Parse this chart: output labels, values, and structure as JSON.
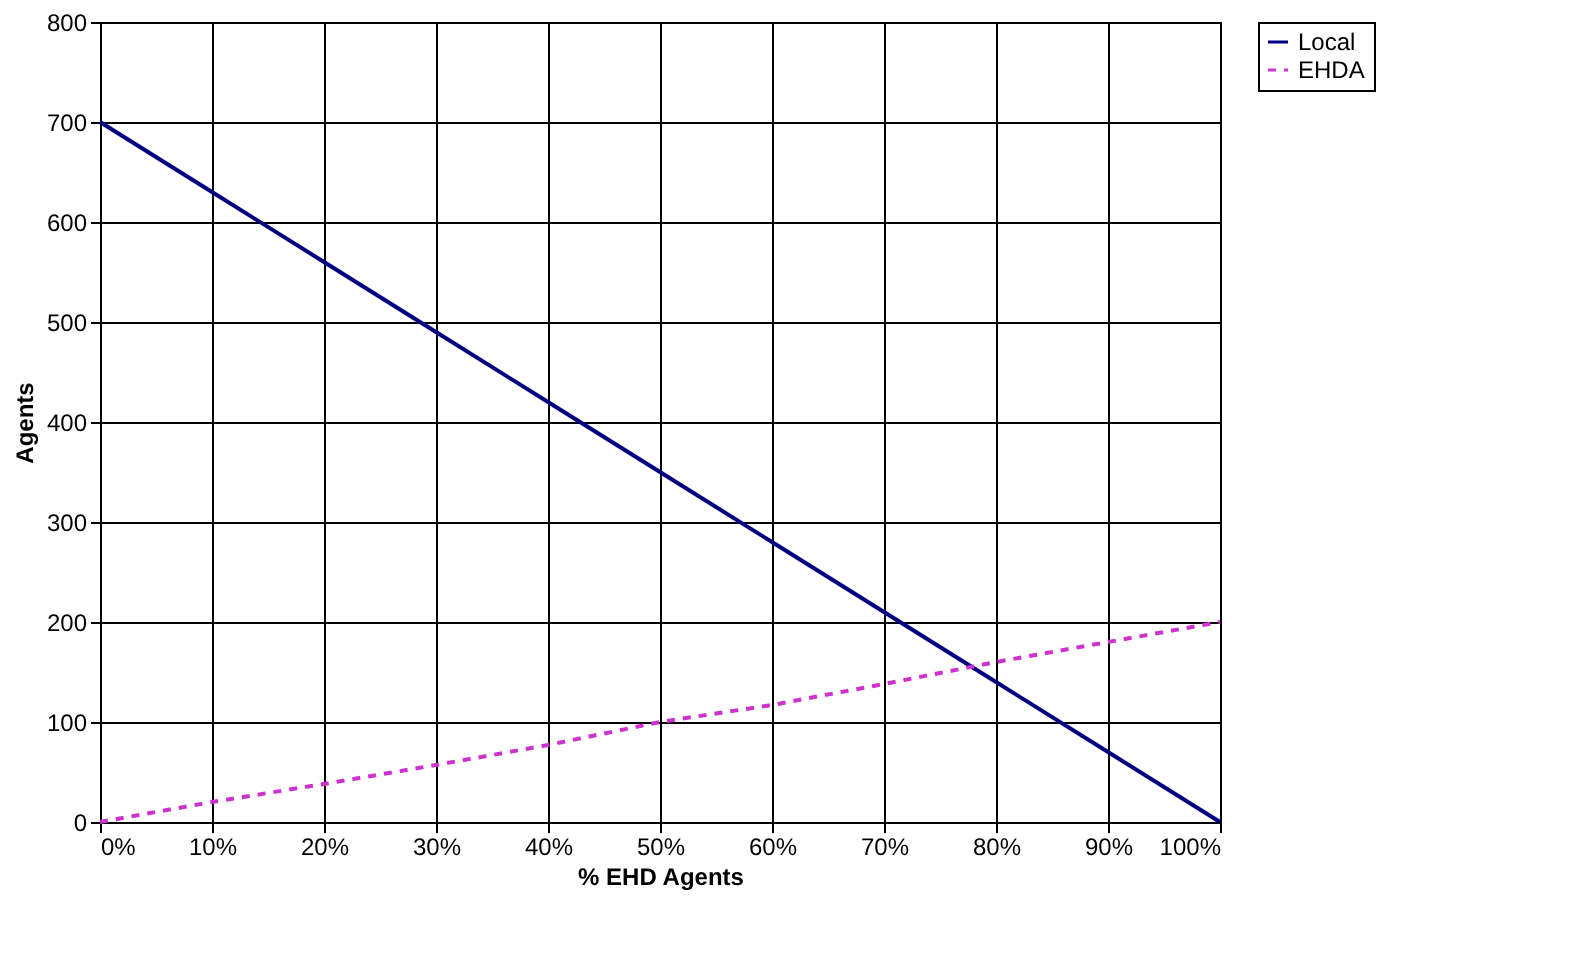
{
  "chart_data": {
    "type": "line",
    "xlabel": "% EHD Agents",
    "ylabel": "Agents",
    "x": [
      0,
      10,
      20,
      30,
      40,
      50,
      60,
      70,
      80,
      90,
      100
    ],
    "xlim": [
      0,
      100
    ],
    "xticks": [
      {
        "value": 0,
        "label": "0%"
      },
      {
        "value": 10,
        "label": "10%"
      },
      {
        "value": 20,
        "label": "20%"
      },
      {
        "value": 30,
        "label": "30%"
      },
      {
        "value": 40,
        "label": "40%"
      },
      {
        "value": 50,
        "label": "50%"
      },
      {
        "value": 60,
        "label": "60%"
      },
      {
        "value": 70,
        "label": "70%"
      },
      {
        "value": 80,
        "label": "80%"
      },
      {
        "value": 90,
        "label": "90%"
      },
      {
        "value": 100,
        "label": "100%"
      }
    ],
    "ylim": [
      0,
      800
    ],
    "yticks": [
      0,
      100,
      200,
      300,
      400,
      500,
      600,
      700,
      800
    ],
    "grid": true,
    "legend": "right",
    "marker": "none",
    "series": [
      {
        "name": "Local",
        "color": "#000080",
        "line_style": "solid",
        "values": [
          700,
          630,
          560,
          490,
          420,
          350,
          280,
          210,
          140,
          70,
          0
        ]
      },
      {
        "name": "EHDA",
        "color": "#cc33cc",
        "line_style": "dashed",
        "values": [
          0,
          20,
          38,
          57,
          77,
          100,
          117,
          138,
          160,
          180,
          200
        ]
      }
    ]
  }
}
